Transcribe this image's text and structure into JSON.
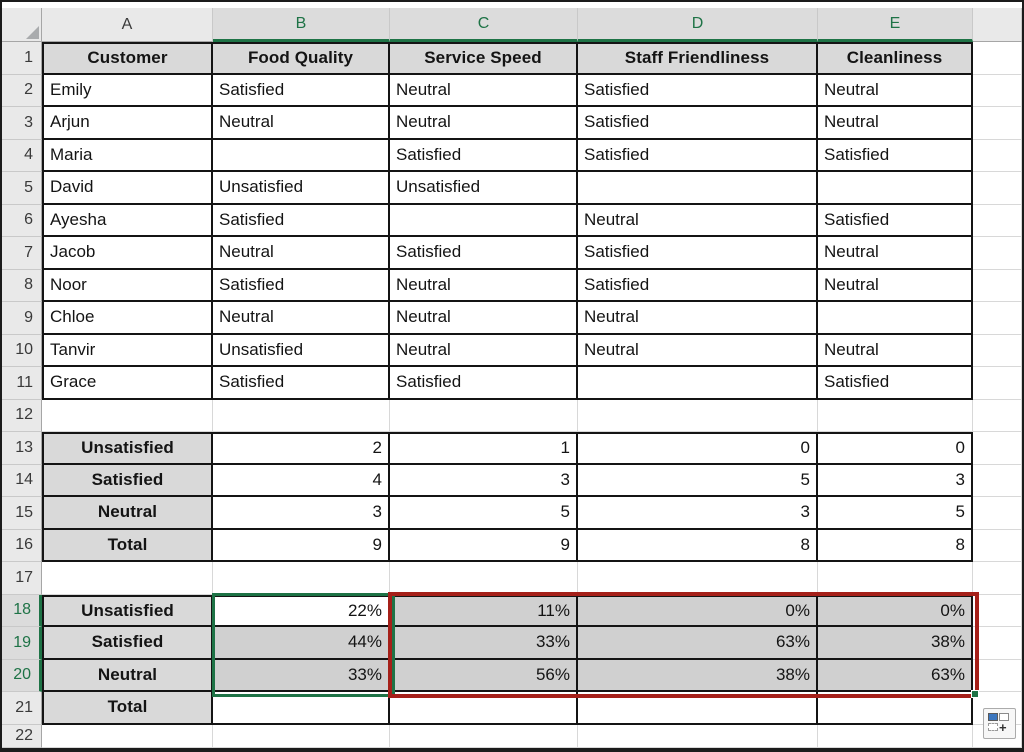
{
  "sheet": {
    "title": "Customer satisfaction survey worksheet",
    "columns": [
      {
        "letter": "A",
        "selected": false
      },
      {
        "letter": "B",
        "selected": true
      },
      {
        "letter": "C",
        "selected": true
      },
      {
        "letter": "D",
        "selected": true
      },
      {
        "letter": "E",
        "selected": true
      },
      {
        "letter": "",
        "selected": false
      }
    ],
    "rows": [
      {
        "n": "1",
        "type": "header",
        "selected": false,
        "cells": [
          "Customer",
          "Food Quality",
          "Service Speed",
          "Staff Friendliness",
          "Cleanliness"
        ]
      },
      {
        "n": "2",
        "type": "data",
        "selected": false,
        "cells": [
          "Emily",
          "Satisfied",
          "Neutral",
          "Satisfied",
          "Neutral"
        ]
      },
      {
        "n": "3",
        "type": "data",
        "selected": false,
        "cells": [
          "Arjun",
          "Neutral",
          "Neutral",
          "Satisfied",
          "Neutral"
        ]
      },
      {
        "n": "4",
        "type": "data",
        "selected": false,
        "cells": [
          "Maria",
          "",
          "Satisfied",
          "Satisfied",
          "Satisfied"
        ]
      },
      {
        "n": "5",
        "type": "data",
        "selected": false,
        "cells": [
          "David",
          "Unsatisfied",
          "Unsatisfied",
          "",
          ""
        ]
      },
      {
        "n": "6",
        "type": "data",
        "selected": false,
        "cells": [
          "Ayesha",
          "Satisfied",
          "",
          "Neutral",
          "Satisfied"
        ]
      },
      {
        "n": "7",
        "type": "data",
        "selected": false,
        "cells": [
          "Jacob",
          "Neutral",
          "Satisfied",
          "Satisfied",
          "Neutral"
        ]
      },
      {
        "n": "8",
        "type": "data",
        "selected": false,
        "cells": [
          "Noor",
          "Satisfied",
          "Neutral",
          "Satisfied",
          "Neutral"
        ]
      },
      {
        "n": "9",
        "type": "data",
        "selected": false,
        "cells": [
          "Chloe",
          "Neutral",
          "Neutral",
          "Neutral",
          ""
        ]
      },
      {
        "n": "10",
        "type": "data",
        "selected": false,
        "cells": [
          "Tanvir",
          "Unsatisfied",
          "Neutral",
          "Neutral",
          "Neutral"
        ]
      },
      {
        "n": "11",
        "type": "data",
        "selected": false,
        "cells": [
          "Grace",
          "Satisfied",
          "Satisfied",
          "",
          "Satisfied"
        ]
      },
      {
        "n": "12",
        "type": "blank",
        "selected": false,
        "cells": [
          "",
          "",
          "",
          "",
          ""
        ]
      },
      {
        "n": "13",
        "type": "count",
        "selected": false,
        "cells": [
          "Unsatisfied",
          "2",
          "1",
          "0",
          "0"
        ]
      },
      {
        "n": "14",
        "type": "count",
        "selected": false,
        "cells": [
          "Satisfied",
          "4",
          "3",
          "5",
          "3"
        ]
      },
      {
        "n": "15",
        "type": "count",
        "selected": false,
        "cells": [
          "Neutral",
          "3",
          "5",
          "3",
          "5"
        ]
      },
      {
        "n": "16",
        "type": "count",
        "selected": false,
        "cells": [
          "Total",
          "9",
          "9",
          "8",
          "8"
        ]
      },
      {
        "n": "17",
        "type": "blank",
        "selected": false,
        "cells": [
          "",
          "",
          "",
          "",
          ""
        ]
      },
      {
        "n": "18",
        "type": "pct",
        "selected": true,
        "cells": [
          "Unsatisfied",
          "22%",
          "11%",
          "0%",
          "0%"
        ]
      },
      {
        "n": "19",
        "type": "pct",
        "selected": true,
        "cells": [
          "Satisfied",
          "44%",
          "33%",
          "63%",
          "38%"
        ]
      },
      {
        "n": "20",
        "type": "pct",
        "selected": true,
        "cells": [
          "Neutral",
          "33%",
          "56%",
          "38%",
          "63%"
        ]
      },
      {
        "n": "21",
        "type": "totalrow",
        "selected": false,
        "cells": [
          "Total",
          "",
          "",
          "",
          ""
        ]
      },
      {
        "n": "22",
        "type": "blank",
        "selected": false,
        "cells": [
          "",
          "",
          "",
          "",
          ""
        ]
      }
    ]
  },
  "selection": {
    "source_range": "B18:B20",
    "fill_range": "C18:E20",
    "active_cell": "B18"
  },
  "colors": {
    "accent_green": "#1E7346",
    "highlight_red": "#A52019",
    "header_fill": "#D9D9D9",
    "selection_fill": "#D0D0D0",
    "grid_line": "#D8D8D8",
    "cell_border": "#141414",
    "autofill_icon_blue": "#3C77BF"
  }
}
